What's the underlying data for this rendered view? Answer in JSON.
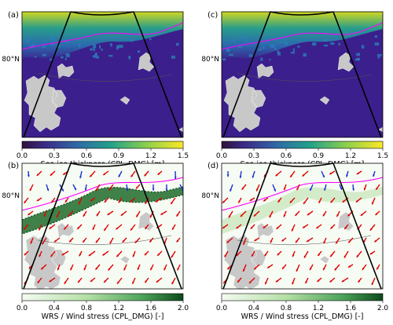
{
  "chart_data": [
    {
      "panel": "(a)",
      "type": "heatmap",
      "variable": "Sea ice thickness",
      "latitude_label": "80°N",
      "colorbar": {
        "label": "Sea ice thickness (CPL_DMG) [m]",
        "ticks": [
          "0.0",
          "0.3",
          "0.6",
          "0.9",
          "1.2",
          "1.5"
        ],
        "range": [
          0.0,
          1.5
        ],
        "colormap": "viridis-like (dark blue to yellow)"
      }
    },
    {
      "panel": "(b)",
      "type": "heatmap",
      "variable": "WRS / Wind stress",
      "latitude_label": "80°N",
      "colorbar": {
        "label": "WRS / Wind stress (CPL_DMG) [-]",
        "ticks": [
          "0.0",
          "0.4",
          "0.8",
          "1.2",
          "1.6",
          "2.0"
        ],
        "range": [
          0.0,
          2.0
        ],
        "colormap": "white to dark green"
      },
      "overlay": "red and blue wind stress arrows"
    },
    {
      "panel": "(c)",
      "type": "heatmap",
      "variable": "Sea ice thickness",
      "latitude_label": "80°N",
      "colorbar": {
        "label": "Sea ice thickness (CPL_DMG) [m]",
        "ticks": [
          "0.0",
          "0.3",
          "0.6",
          "0.9",
          "1.2",
          "1.5"
        ],
        "range": [
          0.0,
          1.5
        ],
        "colormap": "viridis-like (dark blue to yellow)"
      }
    },
    {
      "panel": "(d)",
      "type": "heatmap",
      "variable": "WRS / Wind stress",
      "latitude_label": "80°N",
      "colorbar": {
        "label": "WRS / Wind stress (CPL_DMG) [-]",
        "ticks": [
          "0.0",
          "0.4",
          "0.8",
          "1.2",
          "1.6",
          "2.0"
        ],
        "range": [
          0.0,
          2.0
        ],
        "colormap": "white to dark green"
      },
      "overlay": "red and blue wind stress arrows"
    }
  ],
  "colors": {
    "ocean": "#3b1f8c",
    "land": "#c8c8c8",
    "ice_edge": "#ff00ff",
    "arrow_red": "#e00000",
    "arrow_blue": "#1a33cc",
    "wrs_dark": "#1f6b2a"
  }
}
